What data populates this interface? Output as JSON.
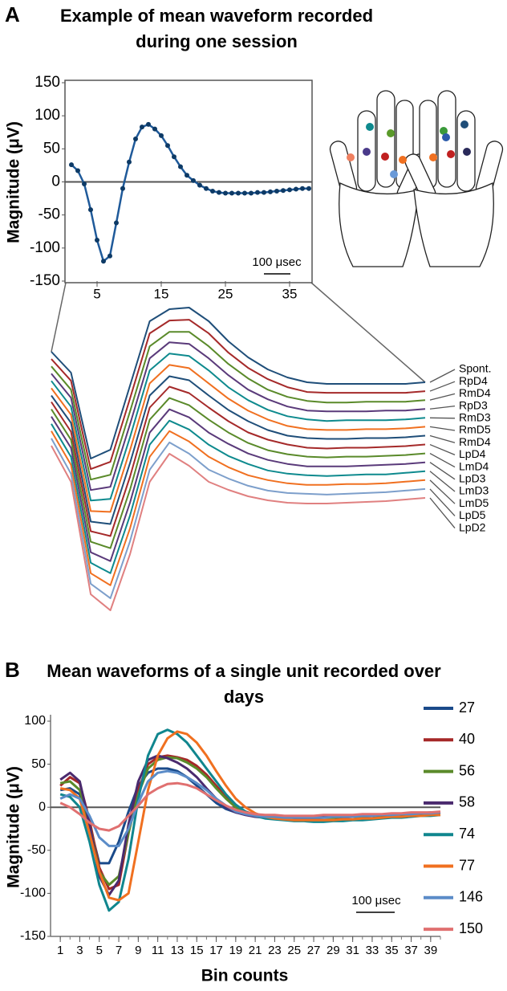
{
  "chart_data": [
    {
      "type": "line",
      "panel": "A",
      "title": "Example of mean waveform recorded during one session",
      "y_label": "Magnitude (μV)",
      "annotation": "100 μsec",
      "markers": true,
      "x": [
        1,
        2,
        3,
        4,
        5,
        6,
        7,
        8,
        9,
        10,
        11,
        12,
        13,
        14,
        15,
        16,
        17,
        18,
        19,
        20,
        21,
        22,
        23,
        24,
        25,
        26,
        27,
        28,
        29,
        30,
        31,
        32,
        33,
        34,
        35,
        36,
        37,
        38
      ],
      "series": [
        {
          "color": "#1f5a9a",
          "values": [
            26,
            17,
            -3,
            -42,
            -88,
            -120,
            -112,
            -62,
            -10,
            30,
            65,
            83,
            87,
            80,
            70,
            55,
            38,
            23,
            10,
            2,
            -5,
            -10,
            -14,
            -16,
            -17,
            -17,
            -17,
            -17,
            -17,
            -16,
            -16,
            -15,
            -14,
            -13,
            -12,
            -11,
            -10,
            -10
          ]
        }
      ],
      "xlim": [
        0,
        38.5
      ],
      "ylim": [
        -150,
        150
      ],
      "xticks": [
        5,
        15,
        25,
        35
      ],
      "yticks": [
        -150,
        -100,
        -50,
        0,
        50,
        100,
        150
      ]
    },
    {
      "type": "line",
      "offset_traces": true,
      "series": [
        {
          "name": "Spont.",
          "color": "#1f4e79",
          "values": [
            38,
            12,
            -95,
            -84,
            -4,
            76,
            91,
            93,
            76,
            51,
            31,
            16,
            6,
            0,
            -2,
            -2,
            -2,
            -2,
            -2,
            0
          ]
        },
        {
          "name": "RpD4",
          "color": "#a52a2a",
          "values": [
            40,
            13,
            -97,
            -88,
            -9,
            72,
            88,
            89,
            72,
            48,
            29,
            15,
            5,
            -1,
            -2,
            -2,
            -2,
            -2,
            -2,
            0
          ]
        },
        {
          "name": "RmD4",
          "color": "#5a8a2a",
          "values": [
            42,
            13,
            -99,
            -93,
            -14,
            67,
            85,
            85,
            67,
            45,
            27,
            13,
            4,
            -1,
            -3,
            -3,
            -2,
            -2,
            -2,
            0
          ]
        },
        {
          "name": "RpD3",
          "color": "#5a3a7a",
          "values": [
            44,
            14,
            -101,
            -97,
            -19,
            63,
            83,
            81,
            63,
            42,
            24,
            12,
            3,
            -2,
            -3,
            -3,
            -3,
            -2,
            -2,
            0
          ]
        },
        {
          "name": "RmD3",
          "color": "#0e8a8e",
          "values": [
            46,
            14,
            -103,
            -101,
            -24,
            59,
            80,
            77,
            59,
            38,
            22,
            10,
            2,
            -2,
            -4,
            -3,
            -3,
            -3,
            -2,
            0
          ]
        },
        {
          "name": "RmD5",
          "color": "#f07020",
          "values": [
            48,
            15,
            -105,
            -106,
            -29,
            54,
            77,
            73,
            54,
            35,
            20,
            9,
            1,
            -3,
            -4,
            -4,
            -3,
            -3,
            -2,
            0
          ]
        },
        {
          "name": "RmD4",
          "color": "#1f4e79",
          "values": [
            50,
            16,
            -107,
            -110,
            -34,
            50,
            74,
            69,
            50,
            32,
            18,
            7,
            0,
            -3,
            -4,
            -4,
            -3,
            -3,
            -2,
            0
          ]
        },
        {
          "name": "LpD4",
          "color": "#a52a2a",
          "values": [
            53,
            16,
            -108,
            -114,
            -40,
            46,
            72,
            64,
            46,
            29,
            15,
            6,
            0,
            -4,
            -5,
            -4,
            -4,
            -3,
            -2,
            0
          ]
        },
        {
          "name": "LmD4",
          "color": "#5a8a2a",
          "values": [
            55,
            17,
            -110,
            -118,
            -45,
            42,
            69,
            60,
            42,
            26,
            13,
            4,
            -1,
            -4,
            -5,
            -4,
            -4,
            -3,
            -2,
            0
          ]
        },
        {
          "name": "LpD3",
          "color": "#5a3a7a",
          "values": [
            57,
            18,
            -112,
            -123,
            -50,
            37,
            66,
            56,
            37,
            23,
            11,
            3,
            -2,
            -5,
            -5,
            -5,
            -4,
            -3,
            -2,
            0
          ]
        },
        {
          "name": "LmD3",
          "color": "#0e8a8e",
          "values": [
            59,
            18,
            -114,
            -127,
            -55,
            33,
            63,
            52,
            33,
            19,
            9,
            1,
            -3,
            -5,
            -6,
            -5,
            -4,
            -4,
            -2,
            0
          ]
        },
        {
          "name": "LmD5",
          "color": "#f07020",
          "values": [
            61,
            19,
            -116,
            -131,
            -60,
            29,
            61,
            48,
            29,
            16,
            6,
            0,
            -4,
            -6,
            -6,
            -5,
            -5,
            -4,
            -2,
            0
          ]
        },
        {
          "name": "LpD5",
          "color": "#7d9fcb",
          "values": [
            63,
            19,
            -118,
            -136,
            -65,
            24,
            58,
            44,
            24,
            13,
            4,
            -2,
            -5,
            -6,
            -7,
            -6,
            -5,
            -4,
            -2,
            0
          ]
        },
        {
          "name": "LpD2",
          "color": "#e08080",
          "values": [
            65,
            20,
            -120,
            -140,
            -70,
            20,
            55,
            40,
            20,
            10,
            2,
            -3,
            -6,
            -7,
            -7,
            -6,
            -5,
            -4,
            -2,
            0
          ]
        }
      ]
    },
    {
      "type": "line",
      "panel": "B",
      "title": "Mean waveforms of a single unit recorded over days",
      "x_label": "Bin counts",
      "y_label": "Magnitude (μV)",
      "annotation": "100 μsec",
      "x": [
        1,
        2,
        3,
        4,
        5,
        6,
        7,
        8,
        9,
        10,
        11,
        12,
        13,
        14,
        15,
        16,
        17,
        18,
        19,
        20,
        21,
        22,
        23,
        24,
        25,
        26,
        27,
        28,
        29,
        30,
        31,
        32,
        33,
        34,
        35,
        36,
        37,
        38,
        39,
        40
      ],
      "series": [
        {
          "name": "27",
          "color": "#1a4a8a",
          "values": [
            20,
            22,
            15,
            -20,
            -65,
            -65,
            -40,
            -5,
            25,
            40,
            45,
            45,
            42,
            35,
            25,
            15,
            5,
            -2,
            -6,
            -8,
            -9,
            -10,
            -10,
            -11,
            -11,
            -11,
            -11,
            -11,
            -11,
            -10,
            -10,
            -10,
            -9,
            -9,
            -8,
            -8,
            -7,
            -7,
            -6,
            -6
          ]
        },
        {
          "name": "40",
          "color": "#a52828",
          "values": [
            25,
            35,
            28,
            -15,
            -70,
            -95,
            -90,
            -30,
            20,
            50,
            58,
            60,
            58,
            55,
            48,
            38,
            25,
            12,
            2,
            -5,
            -9,
            -11,
            -12,
            -12,
            -13,
            -13,
            -13,
            -12,
            -12,
            -12,
            -11,
            -11,
            -10,
            -10,
            -9,
            -9,
            -8,
            -8,
            -7,
            -7
          ]
        },
        {
          "name": "56",
          "color": "#5a8a2a",
          "values": [
            28,
            30,
            20,
            -20,
            -75,
            -90,
            -80,
            -30,
            15,
            45,
            55,
            58,
            57,
            52,
            45,
            35,
            22,
            10,
            0,
            -6,
            -9,
            -11,
            -12,
            -12,
            -12,
            -12,
            -12,
            -12,
            -12,
            -11,
            -11,
            -11,
            -10,
            -10,
            -9,
            -9,
            -8,
            -8,
            -7,
            -7
          ]
        },
        {
          "name": "58",
          "color": "#4a2a6e",
          "values": [
            32,
            40,
            30,
            -20,
            -80,
            -102,
            -85,
            -20,
            30,
            55,
            60,
            57,
            52,
            45,
            35,
            22,
            10,
            0,
            -6,
            -9,
            -11,
            -12,
            -12,
            -12,
            -12,
            -12,
            -12,
            -11,
            -11,
            -11,
            -10,
            -10,
            -10,
            -9,
            -9,
            -8,
            -8,
            -7,
            -7,
            -6
          ]
        },
        {
          "name": "74",
          "color": "#10868e",
          "values": [
            15,
            12,
            0,
            -40,
            -90,
            -120,
            -110,
            -60,
            10,
            60,
            85,
            90,
            85,
            75,
            60,
            45,
            30,
            15,
            3,
            -5,
            -10,
            -13,
            -14,
            -15,
            -16,
            -16,
            -17,
            -17,
            -16,
            -16,
            -15,
            -15,
            -14,
            -13,
            -12,
            -12,
            -11,
            -10,
            -10,
            -9
          ]
        },
        {
          "name": "77",
          "color": "#f07020",
          "values": [
            22,
            20,
            10,
            -30,
            -75,
            -105,
            -108,
            -100,
            -40,
            20,
            60,
            80,
            88,
            85,
            75,
            60,
            42,
            25,
            10,
            0,
            -7,
            -11,
            -13,
            -14,
            -15,
            -15,
            -15,
            -15,
            -15,
            -14,
            -14,
            -13,
            -13,
            -12,
            -11,
            -11,
            -10,
            -10,
            -9,
            -9
          ]
        },
        {
          "name": "146",
          "color": "#5b8cc8",
          "values": [
            10,
            15,
            10,
            -10,
            -35,
            -45,
            -45,
            -25,
            5,
            30,
            40,
            42,
            40,
            35,
            28,
            20,
            10,
            2,
            -5,
            -8,
            -10,
            -11,
            -11,
            -12,
            -12,
            -12,
            -12,
            -12,
            -11,
            -11,
            -11,
            -10,
            -10,
            -9,
            -9,
            -8,
            -8,
            -7,
            -7,
            -6
          ]
        },
        {
          "name": "150",
          "color": "#e07070",
          "values": [
            5,
            0,
            -8,
            -18,
            -25,
            -27,
            -22,
            -10,
            2,
            15,
            22,
            27,
            28,
            26,
            22,
            15,
            8,
            2,
            -3,
            -6,
            -8,
            -9,
            -9,
            -10,
            -10,
            -10,
            -10,
            -9,
            -9,
            -9,
            -9,
            -8,
            -8,
            -8,
            -7,
            -7,
            -6,
            -6,
            -6,
            -5
          ]
        }
      ],
      "xlim": [
        0,
        40
      ],
      "ylim": [
        -150,
        100
      ],
      "xticks": [
        1,
        3,
        5,
        7,
        9,
        11,
        13,
        15,
        17,
        19,
        21,
        23,
        25,
        27,
        29,
        31,
        33,
        35,
        37,
        39
      ],
      "yticks": [
        -150,
        -100,
        -50,
        0,
        50,
        100
      ]
    }
  ]
}
